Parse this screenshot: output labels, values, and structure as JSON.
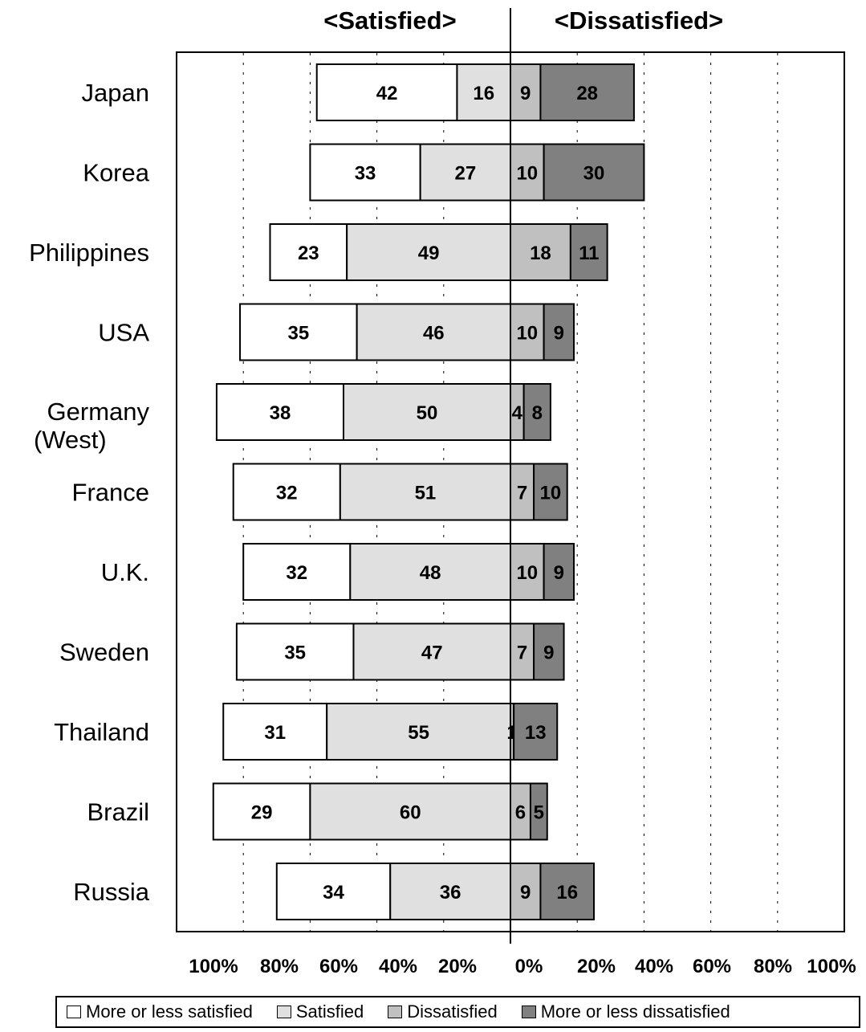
{
  "chart_data": {
    "type": "bar",
    "orientation": "horizontal-diverging",
    "headers": {
      "left": "<Satisfied>",
      "right": "<Dissatisfied>"
    },
    "categories": [
      [
        "Japan"
      ],
      [
        "Korea"
      ],
      [
        "Philippines"
      ],
      [
        "USA"
      ],
      [
        "Germany",
        "(West)"
      ],
      [
        "France"
      ],
      [
        "U.K."
      ],
      [
        "Sweden"
      ],
      [
        "Thailand"
      ],
      [
        "Brazil"
      ],
      [
        "Russia"
      ]
    ],
    "series": [
      {
        "name": "More or less satisfied",
        "side": "left",
        "color": "#ffffff",
        "values": [
          42,
          33,
          23,
          35,
          38,
          32,
          32,
          35,
          31,
          29,
          34
        ]
      },
      {
        "name": "Satisfied",
        "side": "left",
        "color": "#e0e0e0",
        "values": [
          16,
          27,
          49,
          46,
          50,
          51,
          48,
          47,
          55,
          60,
          36
        ]
      },
      {
        "name": "Dissatisfied",
        "side": "right",
        "color": "#c0c0c0",
        "values": [
          9,
          10,
          18,
          10,
          4,
          7,
          10,
          7,
          1,
          6,
          9
        ]
      },
      {
        "name": "More or less dissatisfied",
        "side": "right",
        "color": "#808080",
        "values": [
          28,
          30,
          11,
          9,
          8,
          10,
          9,
          9,
          13,
          5,
          16
        ]
      }
    ],
    "x_ticks_left": [
      "100%",
      "80%",
      "60%",
      "40%",
      "20%"
    ],
    "x_ticks_right": [
      "0%",
      "20%",
      "40%",
      "60%",
      "80%",
      "100%"
    ],
    "xlim": [
      -100,
      100
    ],
    "grid": "vertical dotted",
    "legend_position": "bottom"
  }
}
